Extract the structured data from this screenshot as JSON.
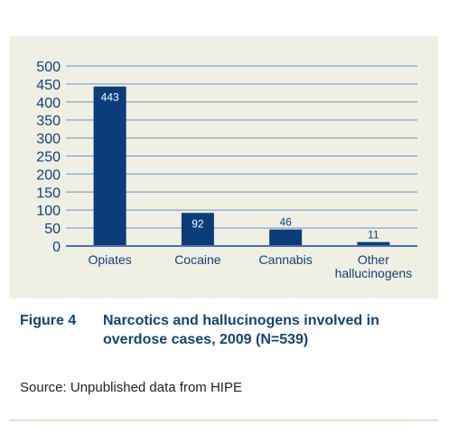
{
  "caption": {
    "label": "Figure 4",
    "text": "Narcotics and hallucinogens involved in overdose cases, 2009 (N=539)"
  },
  "source": "Source: Unpublished data from HIPE",
  "colors": {
    "bar": "#0b3d7a",
    "axis": "#4a74a8",
    "grid": "#6f94c2",
    "tick_text": "#13427a",
    "panel": "#efefe4",
    "caption": "#13427a"
  },
  "chart_data": {
    "type": "bar",
    "title": "",
    "xlabel": "",
    "ylabel": "",
    "categories": [
      "Opiates",
      "Cocaine",
      "Cannabis",
      "Other hallucinogens"
    ],
    "category_lines": [
      [
        "Opiates"
      ],
      [
        "Cocaine"
      ],
      [
        "Cannabis"
      ],
      [
        "Other",
        "hallucinogens"
      ]
    ],
    "values": [
      443,
      92,
      46,
      11
    ],
    "data_labels": [
      "443",
      "92",
      "46",
      "11"
    ],
    "ylim": [
      0,
      500
    ],
    "yticks": [
      0,
      50,
      100,
      150,
      200,
      250,
      300,
      350,
      400,
      450,
      500
    ],
    "grid": true,
    "legend": "none"
  }
}
